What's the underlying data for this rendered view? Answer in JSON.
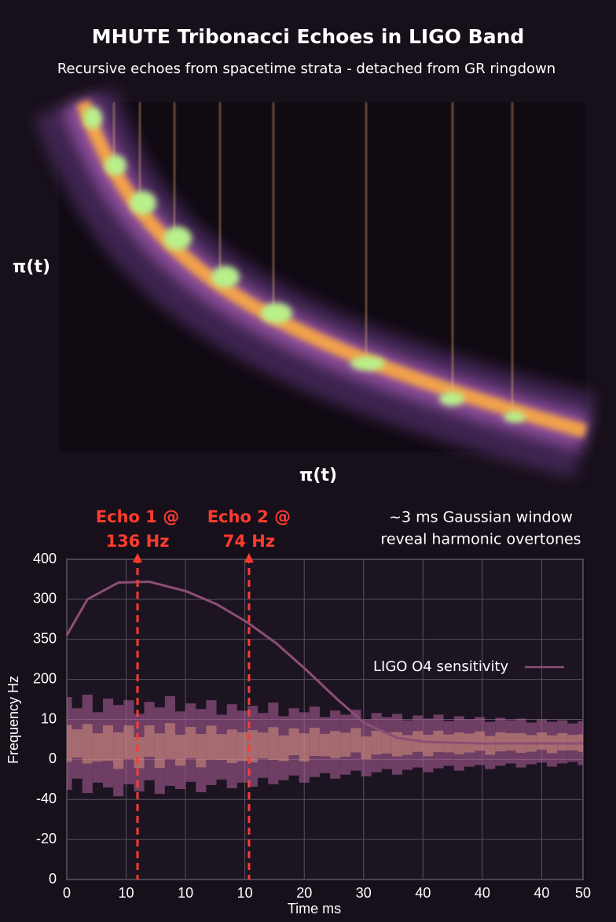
{
  "title": "MHUTE Tribonacci Echoes in LIGO Band",
  "subtitle": "Recursive echoes from spacetime strata - detached from GR ringdown",
  "chart_data": [
    {
      "type": "image",
      "x_label": "π(t)",
      "y_label": "π(t)"
    },
    {
      "type": "line",
      "x_label": "Time ms",
      "y_label": "Frequency Hz",
      "xlim": [
        0,
        50
      ],
      "xticks": [
        0,
        {
          "value": 5.75,
          "label": "10"
        },
        {
          "value": 11.5,
          "label": "10"
        },
        {
          "value": 17.25,
          "label": "10"
        },
        {
          "value": 23,
          "label": "20"
        },
        {
          "value": 28.75,
          "label": "30"
        },
        {
          "value": 34.5,
          "label": "40"
        },
        {
          "value": 40.25,
          "label": "40"
        },
        {
          "value": 46,
          "label": "40"
        },
        50
      ],
      "ylim": [
        0,
        400
      ],
      "yticks": [
        0,
        {
          "value": 50,
          "label": "-20"
        },
        {
          "value": 100,
          "label": "-40"
        },
        {
          "value": 150,
          "label": "0"
        },
        {
          "value": 200,
          "label": "10"
        },
        {
          "value": 250,
          "label": "200"
        },
        {
          "value": 300,
          "label": "350"
        },
        {
          "value": 350,
          "label": "300"
        },
        400
      ],
      "grid": true,
      "legend": "right",
      "series": [
        {
          "name": "LIGO O4 sensitivity",
          "color": "#8c4f74",
          "x": [
            0,
            2,
            5,
            8,
            11.6,
            14.5,
            17.4,
            20.3,
            23.1,
            26.3,
            28.9,
            32,
            34.7,
            40,
            50
          ],
          "values": [
            305,
            350,
            371,
            372,
            360,
            344,
            322,
            295,
            263,
            224,
            195,
            177,
            172,
            170,
            170
          ]
        }
      ],
      "band": {
        "color": "#b0609a",
        "x": [
          0,
          1,
          2,
          3,
          4,
          5,
          6,
          7,
          8,
          9,
          10,
          11,
          12,
          13,
          14,
          15,
          16,
          17,
          18,
          19,
          20,
          21,
          22,
          23,
          24,
          25,
          26,
          27,
          28,
          29,
          30,
          31,
          32,
          33,
          34,
          35,
          36,
          37,
          38,
          39,
          40,
          41,
          42,
          43,
          44,
          45,
          46,
          47,
          48,
          49,
          50
        ],
        "upper": [
          228,
          214,
          231,
          209,
          226,
          218,
          224,
          207,
          222,
          215,
          229,
          210,
          220,
          213,
          224,
          206,
          219,
          211,
          217,
          208,
          221,
          204,
          214,
          209,
          216,
          203,
          211,
          206,
          212,
          200,
          208,
          203,
          207,
          199,
          205,
          201,
          206,
          198,
          204,
          200,
          203,
          197,
          202,
          199,
          201,
          196,
          200,
          197,
          199,
          195,
          198
        ],
        "lower": [
          112,
          126,
          108,
          121,
          115,
          104,
          119,
          110,
          124,
          107,
          117,
          113,
          122,
          109,
          118,
          125,
          114,
          121,
          116,
          127,
          119,
          124,
          130,
          121,
          128,
          133,
          126,
          131,
          136,
          129,
          134,
          138,
          131,
          137,
          140,
          134,
          139,
          142,
          136,
          141,
          143,
          138,
          142,
          145,
          140,
          144,
          146,
          141,
          145,
          147,
          143
        ]
      },
      "annotations": [
        {
          "text": [
            "Echo 1 @",
            "136 Hz"
          ],
          "x": 6.85,
          "color": "#ff3b30"
        },
        {
          "text": [
            "Echo 2 @",
            "74 Hz"
          ],
          "x": 17.65,
          "color": "#ff3b30"
        }
      ],
      "note": [
        "~3 ms Gaussian window",
        "reveal harmonic overtones"
      ]
    }
  ]
}
